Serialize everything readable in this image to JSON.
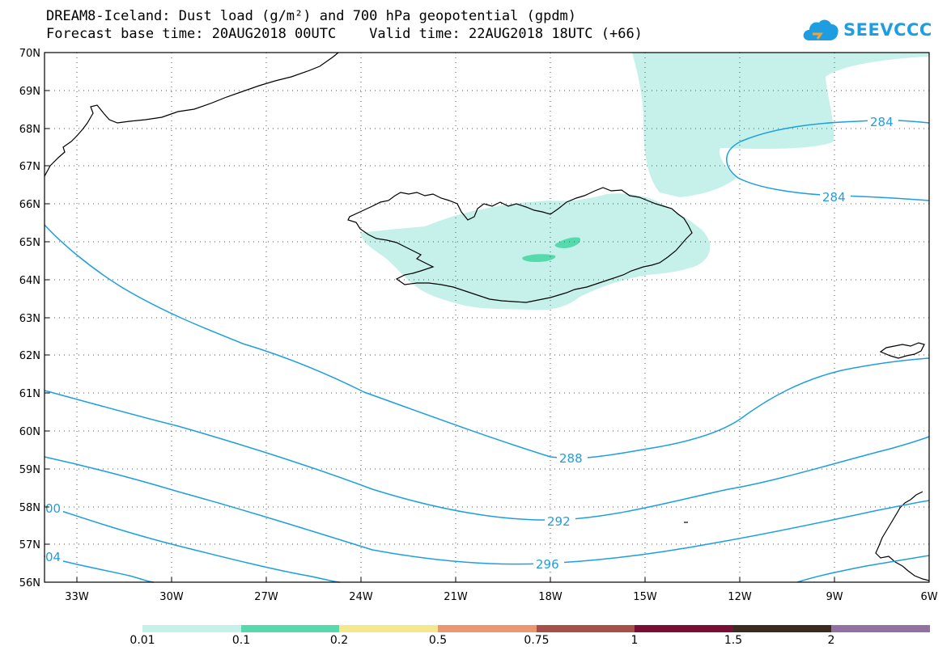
{
  "title": {
    "line1": "DREAM8-Iceland: Dust load (g/m²) and 700 hPa geopotential (gpdm)",
    "line2": "Forecast base time: 20AUG2018 00UTC    Valid time: 22AUG2018 18UTC (+66)"
  },
  "logo": {
    "text": "SEEVCCC",
    "icon": "cloud-icon",
    "color": "#1e9ee0"
  },
  "map": {
    "lat_labels": [
      "70N",
      "69N",
      "68N",
      "67N",
      "66N",
      "65N",
      "64N",
      "63N",
      "62N",
      "61N",
      "60N",
      "59N",
      "58N",
      "57N",
      "56N"
    ],
    "lon_labels": [
      "33W",
      "30W",
      "27W",
      "24W",
      "21W",
      "18W",
      "15W",
      "12W",
      "9W",
      "6W"
    ],
    "contour_color": "#1e9ee0",
    "contour_labels": [
      "284",
      "284",
      "288",
      "292",
      "296",
      "00",
      "04"
    ],
    "coastline_color": "#000000",
    "grid": "dotted"
  },
  "colorbar": {
    "labels": [
      "0.01",
      "0.1",
      "0.2",
      "0.5",
      "0.75",
      "1",
      "1.5",
      "2"
    ],
    "colors": [
      "#c5f1ea",
      "#56d9ac",
      "#f5e78c",
      "#eb9770",
      "#a64f47",
      "#780e33",
      "#3b2a1d",
      "#9370a2"
    ]
  }
}
